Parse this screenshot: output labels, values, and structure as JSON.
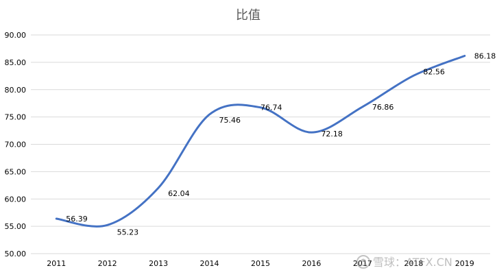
{
  "chart_data": {
    "type": "line",
    "title": "比值",
    "xlabel": "",
    "ylabel": "",
    "categories": [
      "2011",
      "2012",
      "2013",
      "2014",
      "2015",
      "2016",
      "2017",
      "2018",
      "2019"
    ],
    "series": [
      {
        "values": [
          56.39,
          55.23,
          62.04,
          75.46,
          76.74,
          72.18,
          76.86,
          82.56,
          86.18
        ],
        "data_labels": [
          "56.39",
          "55.23",
          "62.04",
          "75.46",
          "76.74",
          "72.18",
          "76.86",
          "82.56",
          "86.18"
        ]
      }
    ],
    "ylim": [
      50,
      90
    ],
    "yticks": [
      50,
      55,
      60,
      65,
      70,
      75,
      80,
      85,
      90
    ],
    "ytick_labels": [
      "50.00",
      "55.00",
      "60.00",
      "65.00",
      "70.00",
      "75.00",
      "80.00",
      "85.00",
      "90.00"
    ],
    "grid": "horizontal",
    "legend": "none",
    "smooth": true,
    "colors": {
      "line": "#4472C4",
      "grid": "#D9D9D9",
      "title": "#595959",
      "text": "#000000"
    }
  },
  "watermark": {
    "text": "雪球：ATFX.CN"
  }
}
